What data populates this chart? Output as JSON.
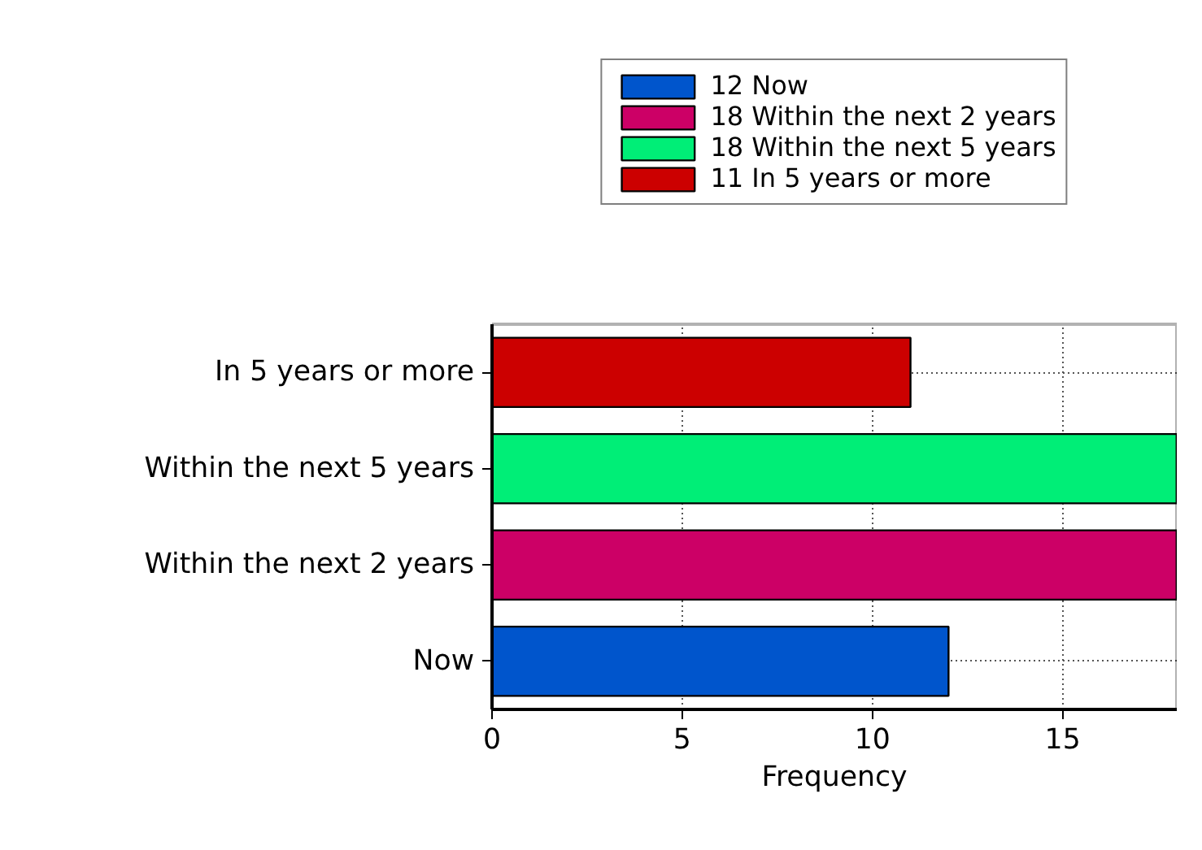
{
  "chart_data": {
    "type": "bar",
    "orientation": "horizontal",
    "xlabel": "Frequency",
    "categories": [
      "In 5 years or more",
      "Within the next 5 years",
      "Within the next 2 years",
      "Now"
    ],
    "series": [
      {
        "name": "12 Now",
        "color": "#0055cc",
        "values": [
          null,
          null,
          null,
          12
        ]
      },
      {
        "name": "18 Within the next 2 years",
        "color": "#cc0066",
        "values": [
          null,
          null,
          18,
          null
        ]
      },
      {
        "name": "18 Within the next 5 years",
        "color": "#00ee77",
        "values": [
          null,
          18,
          null,
          null
        ]
      },
      {
        "name": "11 In 5 years or more",
        "color": "#cc0000",
        "values": [
          11,
          null,
          null,
          null
        ]
      }
    ],
    "xlim": [
      0,
      18
    ],
    "xticks": [
      0,
      5,
      10,
      15
    ],
    "grid": true,
    "legend": "top"
  }
}
